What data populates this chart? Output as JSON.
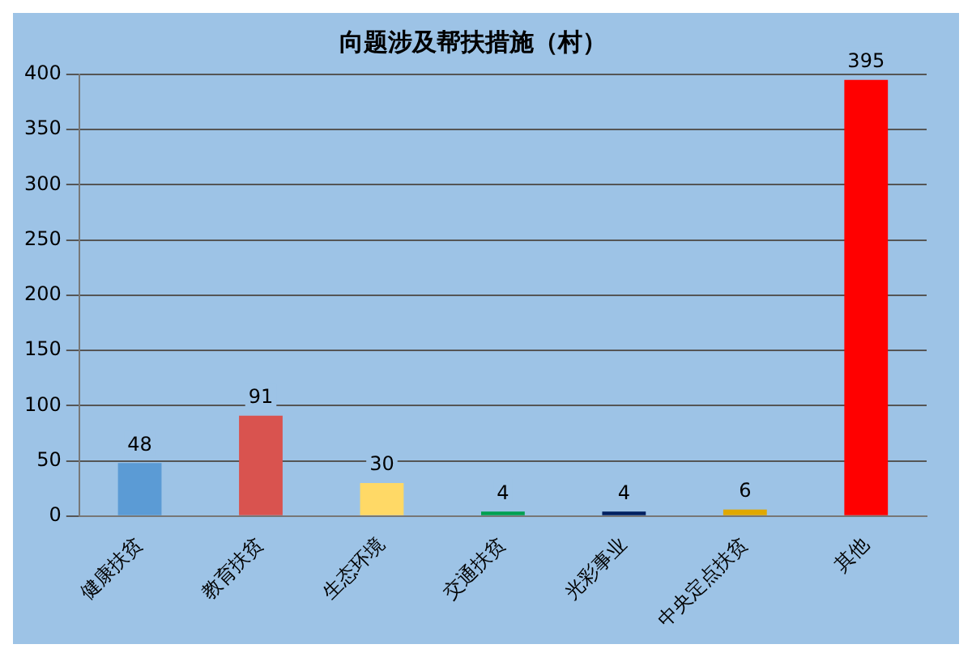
{
  "chart_data": {
    "type": "bar",
    "title": "向题涉及帮扶措施（村）",
    "categories": [
      "健康扶贫",
      "教育扶贫",
      "生态环境",
      "交通扶贫",
      "光彩事业",
      "中央定点扶贫",
      "其他"
    ],
    "values": [
      48,
      91,
      30,
      4,
      4,
      6,
      395
    ],
    "colors": [
      "#5b9bd5",
      "#d9534f",
      "#ffd966",
      "#00a050",
      "#002060",
      "#e0a800",
      "#ff0000"
    ],
    "ylim": [
      0,
      400
    ],
    "yticks": [
      0,
      50,
      100,
      150,
      200,
      250,
      300,
      350,
      400
    ],
    "grid": "y",
    "data_labels": true,
    "legend": false
  }
}
